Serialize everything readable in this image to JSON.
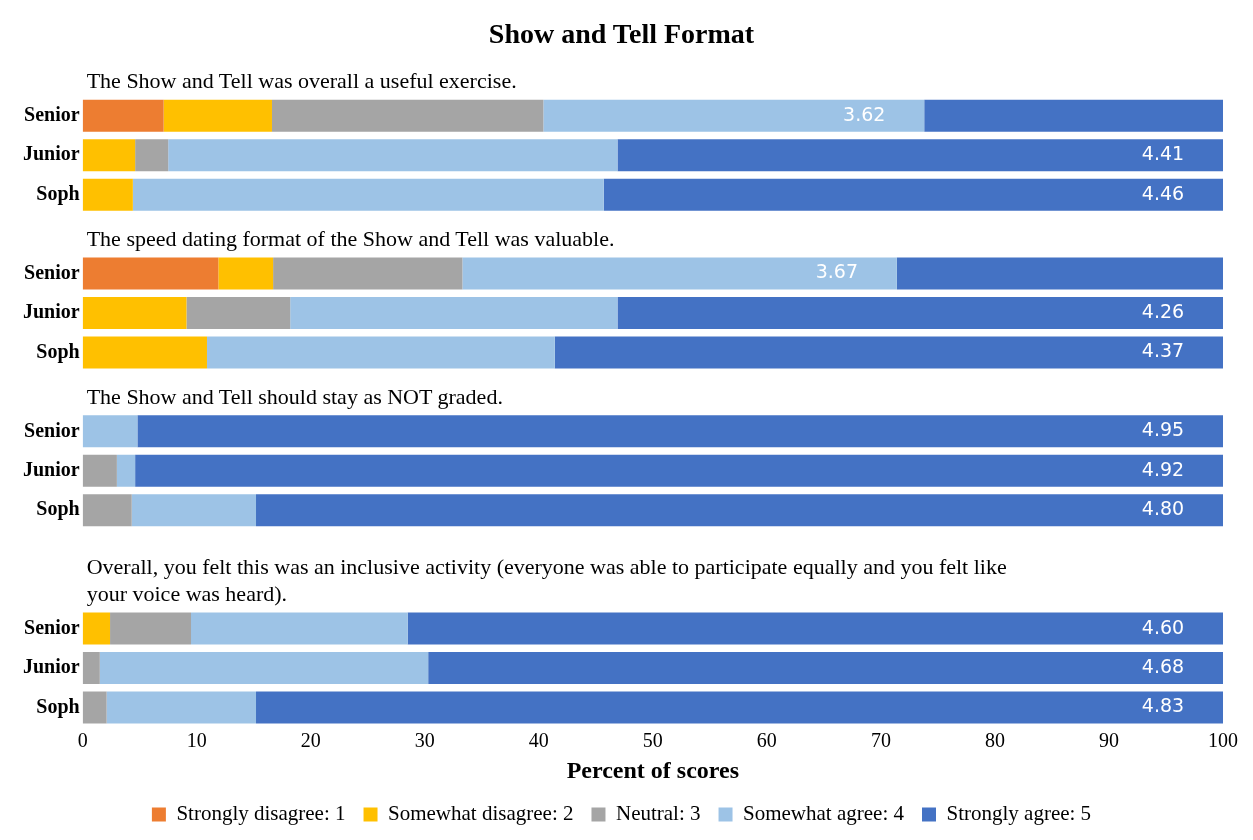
{
  "chart_data": {
    "type": "bar",
    "orientation": "horizontal",
    "stacked": true,
    "title": "Show and Tell Format",
    "xlabel": "Percent of scores",
    "categories": [
      null,
      "Senior",
      "Junior",
      "Soph",
      null,
      "Senior",
      "Junior",
      "Soph",
      null,
      "Senior",
      "Junior",
      "Soph",
      null,
      null,
      "Senior",
      "Junior",
      "Soph"
    ],
    "series": [
      {
        "name": "Strongly disagree: 1",
        "color": "#ed7d31",
        "values": [
          null,
          7.1,
          0,
          0,
          null,
          11.9,
          0,
          0,
          null,
          0,
          0,
          0,
          null,
          null,
          0,
          0,
          0
        ]
      },
      {
        "name": "Somewhat disagree: 2",
        "color": "#ffc000",
        "values": [
          null,
          9.5,
          4.6,
          4.4,
          null,
          4.8,
          9.1,
          10.9,
          null,
          0,
          0,
          0,
          null,
          null,
          2.4,
          0,
          0
        ]
      },
      {
        "name": "Neutral: 3",
        "color": "#a5a5a5",
        "values": [
          null,
          23.8,
          2.9,
          0,
          null,
          16.6,
          9.1,
          0,
          null,
          0,
          3.0,
          4.3,
          null,
          null,
          7.1,
          1.5,
          2.1
        ]
      },
      {
        "name": "Somewhat agree: 4",
        "color": "#9dc3e6",
        "values": [
          null,
          33.4,
          39.4,
          41.3,
          null,
          38.1,
          28.7,
          30.5,
          null,
          4.8,
          1.6,
          10.9,
          null,
          null,
          19.0,
          28.8,
          13.1
        ]
      },
      {
        "name": "Strongly agree: 5",
        "color": "#4472c4",
        "values": [
          null,
          26.2,
          53.1,
          54.3,
          null,
          28.6,
          53.1,
          58.6,
          null,
          95.2,
          95.4,
          84.8,
          null,
          null,
          71.5,
          69.7,
          84.8
        ]
      }
    ],
    "xlim": [
      0,
      100
    ],
    "xticks": [
      0,
      10,
      20,
      30,
      40,
      50,
      60,
      70,
      80,
      90,
      100
    ],
    "legend": "bottom",
    "annotations": [
      "The Show and Tell was overall a useful exercise.",
      "The speed dating format of the Show and Tell was valuable.",
      "The Show and Tell should stay as NOT graded.",
      "Overall, you felt this was an inclusive activity (everyone was able to participate equally and you felt like your voice was heard).",
      "3.62",
      "4.41",
      "4.46",
      "3.67",
      "4.26",
      "4.37",
      "4.95",
      "4.92",
      "4.80",
      "4.60",
      "4.68",
      "4.83"
    ]
  }
}
